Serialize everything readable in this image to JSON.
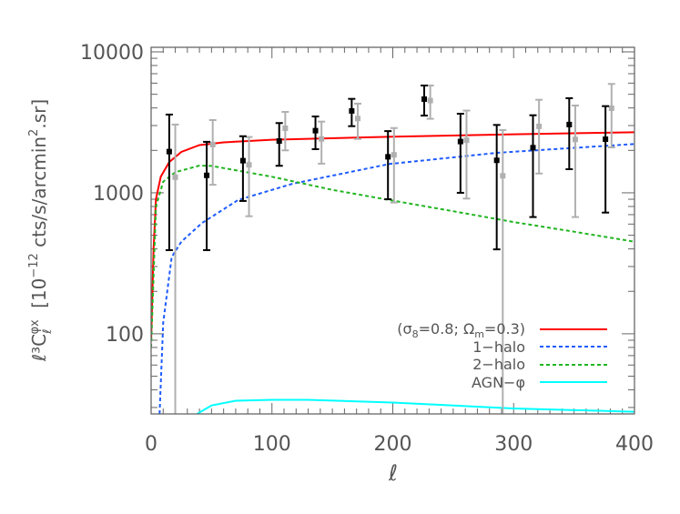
{
  "chart_data": {
    "type": "line",
    "title": "",
    "xlabel": "ℓ",
    "ylabel": {
      "prefix": "ℓ³C",
      "sub": "ℓ",
      "sup": "φx",
      "bracket_open": "[10",
      "exponent": "−12",
      "units": " cts/s/arcmin",
      "units_sup": "2",
      "units_end": ".sr]"
    },
    "xlim": [
      0,
      400
    ],
    "ylim": [
      27,
      10770
    ],
    "yscale": "log",
    "grid": false,
    "legend_placement": "lower-right",
    "xticks": [
      "0",
      "100",
      "200",
      "300",
      "400"
    ],
    "yticks": [
      "100",
      "1000",
      "10000"
    ],
    "legend": [
      {
        "label_parts": [
          "(σ",
          "8",
          "=0.8; Ω",
          "m",
          "=0.3)"
        ],
        "color": "#ff0000",
        "style": "solid"
      },
      {
        "label": "1−halo",
        "color": "#1e5bff",
        "style": "dotted"
      },
      {
        "label": "2−halo",
        "color": "#1fb51f",
        "style": "dashed"
      },
      {
        "label": "AGN−φ",
        "color": "#00ffff",
        "style": "solid"
      }
    ],
    "series": [
      {
        "key": "total",
        "color": "#ff0000",
        "style": "solid",
        "x": [
          0,
          2,
          4,
          8,
          15,
          25,
          40,
          60,
          100,
          200,
          300,
          400
        ],
        "y": [
          90,
          400,
          900,
          1300,
          1650,
          1950,
          2180,
          2280,
          2380,
          2500,
          2600,
          2690
        ]
      },
      {
        "key": "1-halo",
        "color": "#1e5bff",
        "style": "dotted",
        "x": [
          7,
          10,
          17,
          25,
          42,
          72,
          117,
          162,
          197,
          286,
          400
        ],
        "y": [
          27,
          120,
          350,
          450,
          610,
          890,
          1160,
          1390,
          1600,
          1920,
          2220
        ]
      },
      {
        "key": "2-halo",
        "color": "#1fb51f",
        "style": "dashed",
        "x": [
          0,
          4,
          10,
          20,
          40,
          50,
          100,
          150,
          200,
          250,
          300,
          350,
          400
        ],
        "y": [
          80,
          800,
          1200,
          1400,
          1560,
          1550,
          1300,
          1050,
          880,
          740,
          620,
          530,
          450
        ]
      },
      {
        "key": "AGN-phi",
        "color": "#00ffff",
        "style": "solid",
        "x": [
          38,
          50,
          70,
          100,
          130,
          200,
          300,
          400
        ],
        "y": [
          27,
          31,
          33.5,
          34,
          34,
          32.5,
          29.5,
          28
        ]
      }
    ],
    "points": [
      {
        "key": "black",
        "color": "#000000",
        "x": [
          15,
          46,
          76,
          106,
          136,
          166,
          196,
          226,
          256,
          286,
          316,
          346,
          376
        ],
        "y": [
          1960,
          1330,
          1690,
          2330,
          2760,
          3810,
          1800,
          4620,
          2310,
          1700,
          2090,
          3050,
          2400
        ],
        "y_high": [
          3590,
          2300,
          2520,
          3125,
          3480,
          4640,
          2740,
          5770,
          3640,
          3030,
          3550,
          4690,
          4120
        ],
        "y_low": [
          392,
          392,
          875,
          1555,
          2040,
          2970,
          900,
          3530,
          1000,
          397,
          673,
          1470,
          724
        ]
      },
      {
        "key": "gray",
        "color": "#b0b0b0",
        "x": [
          20,
          51,
          81,
          111,
          141,
          171,
          201,
          231,
          261,
          291,
          321,
          351,
          381
        ],
        "y": [
          1290,
          2200,
          1580,
          2870,
          2410,
          3365,
          1860,
          4510,
          2360,
          1320,
          2960,
          2390,
          3980
        ],
        "y_high": [
          3050,
          3280,
          2490,
          3750,
          3200,
          4290,
          2880,
          5770,
          3830,
          2790,
          4570,
          4160,
          5920
        ],
        "y_low": [
          20,
          1140,
          682,
          2000,
          1610,
          2410,
          853,
          3350,
          910,
          20,
          1370,
          673,
          2100
        ]
      }
    ]
  }
}
